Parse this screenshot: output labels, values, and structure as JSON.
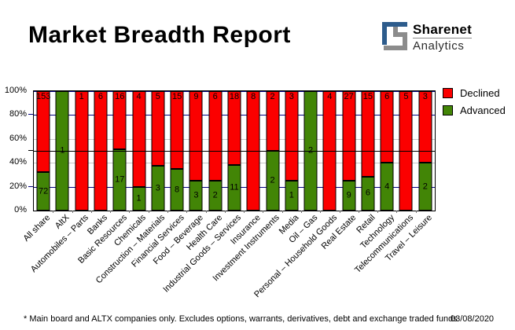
{
  "header": {
    "title": "Market Breadth Report",
    "brand_name": "Sharenet",
    "brand_sub": "Analytics"
  },
  "footer": {
    "note": "* Main board and ALTX companies only. Excludes options, warrants, derivatives, debt and exchange traded funds",
    "date": "03/08/2020"
  },
  "colors": {
    "declined": "#fb0000",
    "advanced": "#428506",
    "grid_major": "#000080",
    "grid_minor": "#c6c6c6",
    "midline": "#000000",
    "logo_blue": "#2d5c8c",
    "logo_gray": "#8c8c8c"
  },
  "chart_data": {
    "type": "bar",
    "stacked": true,
    "normalized_percent": true,
    "title": "Market Breadth Report",
    "categories": [
      "All share",
      "AltX",
      "Automobiles – Parts",
      "Banks",
      "Basic Resources",
      "Chemicals",
      "Construction – Materials",
      "Financial Services",
      "Food – Beverage",
      "Health Care",
      "Industrial Goods – Services",
      "Insurance",
      "Investment Instruments",
      "Media",
      "Oil – Gas",
      "Personal – Household Goods",
      "Real Estate",
      "Retail",
      "Technology",
      "Telecommunications",
      "Travel – Leisure"
    ],
    "series": [
      {
        "name": "Declined",
        "color": "#fb0000",
        "values": [
          153,
          0,
          1,
          6,
          16,
          4,
          5,
          15,
          9,
          6,
          18,
          8,
          2,
          3,
          0,
          4,
          27,
          15,
          6,
          5,
          3
        ]
      },
      {
        "name": "Advanced",
        "color": "#428506",
        "values": [
          72,
          1,
          0,
          0,
          17,
          1,
          3,
          8,
          3,
          2,
          11,
          0,
          2,
          1,
          2,
          0,
          9,
          6,
          4,
          0,
          2
        ]
      }
    ],
    "y_ticks": [
      "100%",
      "80%",
      "60%",
      "40%",
      "20%",
      "0%"
    ],
    "ylim": [
      0,
      100
    ],
    "ylabel": "",
    "xlabel": "",
    "reference_line_percent": 50,
    "grid": true,
    "legend_position": "top-right"
  }
}
